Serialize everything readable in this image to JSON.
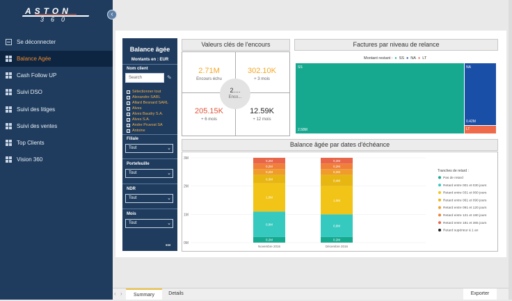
{
  "logo": {
    "line1": "ASTON",
    "line2": "360"
  },
  "sidebar": {
    "collapse_glyph": "‹",
    "items": [
      {
        "label": "Se déconnecter",
        "icon": "logout-icon"
      },
      {
        "label": "Balance Agée",
        "icon": "grid-icon",
        "active": true
      },
      {
        "label": "Cash Follow UP",
        "icon": "grid-icon"
      },
      {
        "label": "Suivi DSO",
        "icon": "grid-icon"
      },
      {
        "label": "Suivi des litiges",
        "icon": "grid-icon"
      },
      {
        "label": "Suivi des ventes",
        "icon": "grid-icon"
      },
      {
        "label": "Top Clients",
        "icon": "grid-icon"
      },
      {
        "label": "Vision 360",
        "icon": "grid-icon"
      }
    ]
  },
  "slicer": {
    "title": "Balance âgée",
    "currency_label": "Montants en : EUR",
    "client_label": "Nom client",
    "search_placeholder": "Search",
    "clients": [
      "Sélectionner tout",
      "Alexandre SARL",
      "Allard Besnard SARL",
      "Alves",
      "Alves Baudry S.A.",
      "Alves S.A.",
      "Andre Pruvost SA",
      "Antoine"
    ],
    "filters": [
      {
        "label": "Filiale",
        "value": "Tout"
      },
      {
        "label": "Portefeuille",
        "value": "Tout"
      },
      {
        "label": "NDR",
        "value": "Tout"
      },
      {
        "label": "Mois",
        "value": "Tout"
      }
    ],
    "more": "•••"
  },
  "kpis": {
    "title": "Valeurs clés de l'encours",
    "tl": {
      "value": "2.71M",
      "sub": "Encours échu"
    },
    "tr": {
      "value": "302.10K",
      "sub": "+ 3 mois"
    },
    "bl": {
      "value": "205.15K",
      "sub": "+ 6 mois"
    },
    "br": {
      "value": "12.59K",
      "sub": "+ 12 mois"
    },
    "center": {
      "value": "2....",
      "sub": "Enco..."
    },
    "colors": {
      "orange": "#f5a623",
      "red": "#e0553a",
      "dark": "#222222"
    }
  },
  "treemap": {
    "title": "Factures par niveau de relance",
    "legend_title": "Montant restant :",
    "legend": [
      {
        "name": "SS",
        "color": "#17a890"
      },
      {
        "name": "NA",
        "color": "#1a4fa8"
      },
      {
        "name": "LT",
        "color": "#ee6a4a"
      }
    ],
    "cells": [
      {
        "name": "SS",
        "label": "2.58M"
      },
      {
        "name": "NA",
        "label": "0.42M"
      },
      {
        "name": "LT",
        "label": "LT"
      }
    ]
  },
  "chart_data": {
    "type": "bar",
    "title": "Balance âgée par dates d'échéance",
    "categories": [
      "Novembre 2016",
      "Décembre 2016"
    ],
    "yticks": [
      "0M",
      "1M",
      "2M",
      "3M"
    ],
    "ylim": [
      0,
      3
    ],
    "legend_title": "Tranches de retard :",
    "series": [
      {
        "name": "Pas de retard",
        "color": "#17a890",
        "values": [
          0.2,
          0.2
        ],
        "labels": [
          "0.2M",
          "0.2M"
        ]
      },
      {
        "name": "Retard entre 001 et 030 jours",
        "color": "#36c9bf",
        "values": [
          0.9,
          0.8
        ],
        "labels": [
          "0,9M",
          "0,8M"
        ]
      },
      {
        "name": "Retard entre 031 et 060 jours",
        "color": "#f2c417",
        "values": [
          1.0,
          1.0
        ],
        "labels": [
          "1,0M",
          "1,0M"
        ]
      },
      {
        "name": "Retard entre 061 et 090 jours",
        "color": "#e8b612",
        "values": [
          0.3,
          0.4
        ],
        "labels": [
          "0,3M",
          "0,4M"
        ]
      },
      {
        "name": "Retard entre 091 et 120 jours",
        "color": "#ef9c2c",
        "values": [
          0.2,
          0.2
        ],
        "labels": [
          "0,2M",
          "0,2M"
        ]
      },
      {
        "name": "Retard entre 121 et 180 jours",
        "color": "#f07f3a",
        "values": [
          0.2,
          0.2
        ],
        "labels": [
          "0,2M",
          "0,2M"
        ]
      },
      {
        "name": "Retard entre 181 et 365 jours",
        "color": "#e8654a",
        "values": [
          0.2,
          0.2
        ],
        "labels": [
          "0,2M",
          "0,2M"
        ]
      },
      {
        "name": "Retard supérieur à 1 an",
        "color": "#222222",
        "values": [
          0,
          0
        ],
        "labels": [
          "",
          ""
        ]
      }
    ]
  },
  "bottom": {
    "tabs": [
      "Summary",
      "Details"
    ],
    "export_label": "Exporter",
    "nav_prev": "‹",
    "nav_next": "›"
  }
}
